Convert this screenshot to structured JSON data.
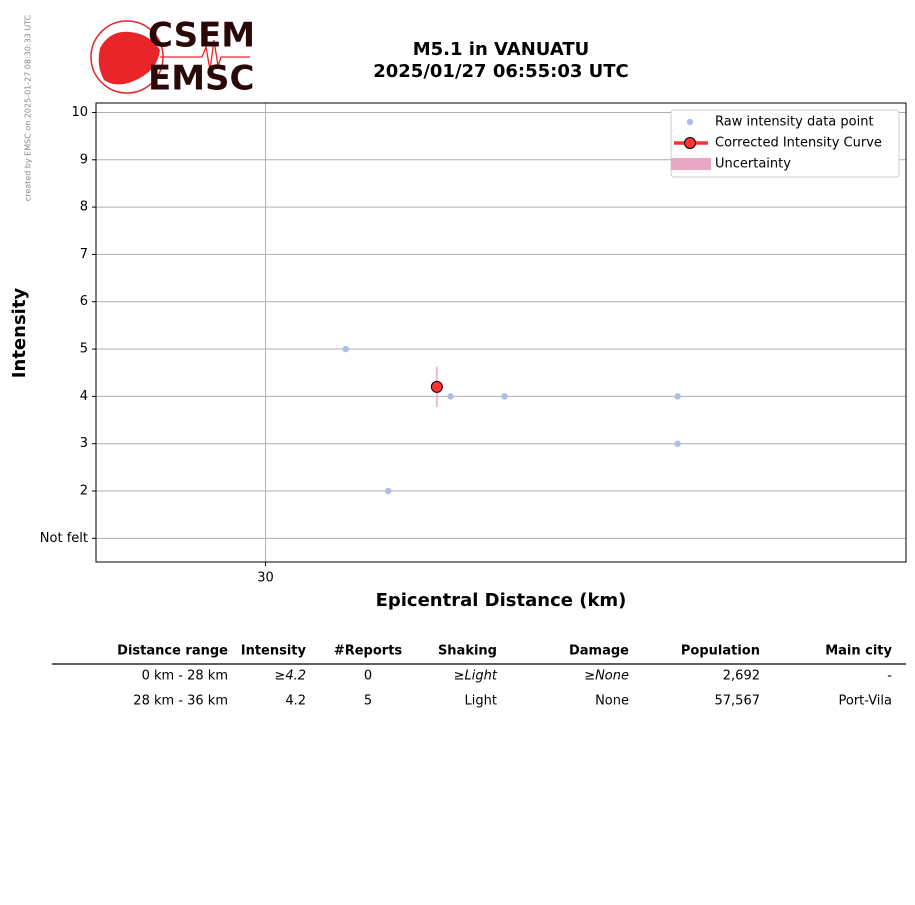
{
  "header": {
    "created": "created by EMSC on 2025-01-27 08:30:33 UTC",
    "logo": [
      "CSEM",
      "EMSC"
    ]
  },
  "chart_data": {
    "type": "scatter",
    "title": [
      "M5.1 in VANUATU",
      "2025/01/27 06:55:03 UTC"
    ],
    "xlabel": "Epicentral Distance (km)",
    "ylabel": "Intensity",
    "log_x": true,
    "xlim": [
      27.8,
      40
    ],
    "xticks": [
      30
    ],
    "ylim": [
      0.5,
      10.2
    ],
    "yticks": [
      {
        "value": 1,
        "label": "Not felt"
      },
      2,
      3,
      4,
      5,
      6,
      7,
      8,
      9,
      10
    ],
    "grid": true,
    "legend": "upper right",
    "series": [
      {
        "name": "Raw intensity data point",
        "color": "#aebce8",
        "x": [
          31.1,
          31.7,
          32.6,
          33.4,
          36.1,
          36.1
        ],
        "values": [
          5,
          2,
          4,
          4,
          4,
          3
        ]
      },
      {
        "name": "Corrected Intensity Curve",
        "color": "#ff3333",
        "x": [
          32.4
        ],
        "values": [
          4.2
        ],
        "errors": [
          0.43
        ]
      }
    ],
    "uncertainty": {
      "name": "Uncertainty",
      "color": "#e8a8c4"
    }
  },
  "table": {
    "columns": [
      "Distance range",
      "Intensity",
      "#Reports",
      "Shaking",
      "Damage",
      "Population",
      "Main city"
    ],
    "rows": [
      [
        "0 km -   28 km",
        "≥4.2",
        "0",
        "≥Light",
        "≥None",
        "2,692",
        "-"
      ],
      [
        "28 km -   36 km",
        "4.2",
        "5",
        "Light",
        "None",
        "57,567",
        "Port-Vila"
      ]
    ]
  }
}
